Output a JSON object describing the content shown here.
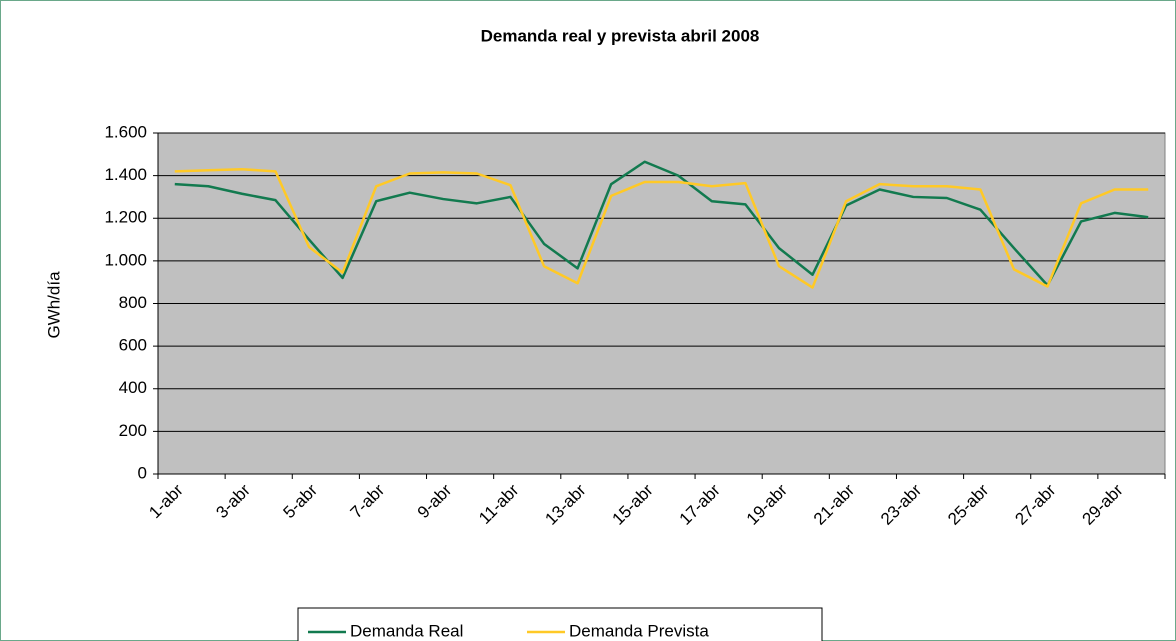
{
  "chart_data": {
    "type": "line",
    "title": "Demanda real y prevista abril 2008",
    "y_label": "GWh/día",
    "categories": [
      "1-abr",
      null,
      "3-abr",
      null,
      "5-abr",
      null,
      "7-abr",
      null,
      "9-abr",
      null,
      "11-abr",
      null,
      "13-abr",
      null,
      "15-abr",
      null,
      "17-abr",
      null,
      "19-abr",
      null,
      "21-abr",
      null,
      "23-abr",
      null,
      "25-abr",
      null,
      "27-abr",
      null,
      "29-abr",
      null
    ],
    "series": [
      {
        "name": "Demanda Real",
        "color": "#127a4f",
        "values": [
          1360,
          1350,
          1315,
          1285,
          1100,
          920,
          1280,
          1320,
          1290,
          1270,
          1300,
          1080,
          965,
          1360,
          1465,
          1400,
          1280,
          1265,
          1060,
          935,
          1260,
          1335,
          1300,
          1295,
          1240,
          1060,
          885,
          1185,
          1225,
          1205
        ]
      },
      {
        "name": "Demanda Prevista",
        "color": "#ffc926",
        "values": [
          1420,
          1425,
          1430,
          1420,
          1065,
          945,
          1350,
          1410,
          1415,
          1410,
          1355,
          975,
          895,
          1305,
          1370,
          1370,
          1350,
          1365,
          975,
          875,
          1280,
          1360,
          1350,
          1350,
          1335,
          960,
          880,
          1270,
          1335,
          1335
        ]
      }
    ],
    "ylim": [
      0,
      1600
    ],
    "yticks": [
      0,
      200,
      400,
      600,
      800,
      {
        "value": 1000,
        "label": "1.000"
      },
      {
        "value": 1200,
        "label": "1.200"
      },
      {
        "value": 1400,
        "label": "1.400"
      },
      {
        "value": 1600,
        "label": "1.600"
      }
    ],
    "grid": true,
    "legend": "bottom"
  }
}
